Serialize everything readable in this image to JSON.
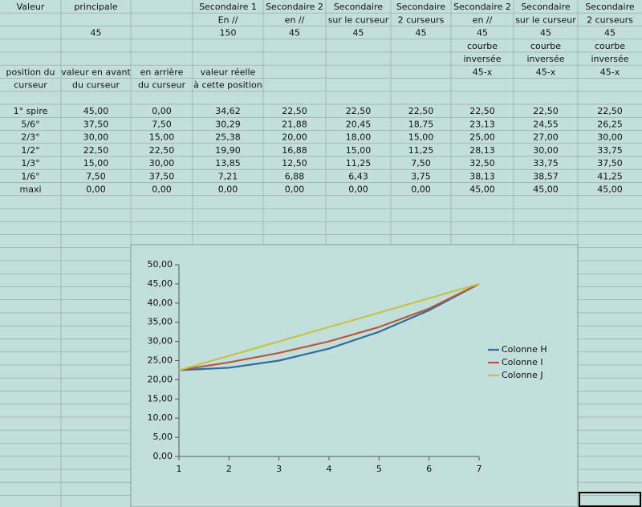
{
  "table": {
    "rows": [
      [
        "Valeur",
        "principale",
        null,
        "Secondaire 1",
        "Secondaire 2",
        "Secondaire",
        "Secondaire",
        "Secondaire 2",
        "Secondaire",
        "Secondaire"
      ],
      [
        null,
        null,
        null,
        "En //",
        "en //",
        "sur le curseur",
        "2 curseurs",
        "en //",
        "sur le curseur",
        "2 curseurs"
      ],
      [
        null,
        "45",
        null,
        "150",
        "45",
        "45",
        "45",
        "45",
        "45",
        "45"
      ],
      [
        null,
        null,
        null,
        null,
        null,
        null,
        null,
        "courbe",
        "courbe",
        "courbe"
      ],
      [
        null,
        null,
        null,
        null,
        null,
        null,
        null,
        "inversée",
        "inversée",
        "inversée"
      ],
      [
        "position du",
        "valeur en avant",
        "en arrière",
        "valeur réelle",
        null,
        null,
        null,
        "45-x",
        "45-x",
        "45-x"
      ],
      [
        "curseur",
        "du curseur",
        "du curseur",
        "à cette position",
        null,
        null,
        null,
        null,
        null,
        null
      ],
      [
        null,
        null,
        null,
        null,
        null,
        null,
        null,
        null,
        null,
        null
      ],
      [
        "1° spire",
        "45,00",
        "0,00",
        "34,62",
        "22,50",
        "22,50",
        "22,50",
        "22,50",
        "22,50",
        "22,50"
      ],
      [
        "5/6°",
        "37,50",
        "7,50",
        "30,29",
        "21,88",
        "20,45",
        "18,75",
        "23,13",
        "24,55",
        "26,25"
      ],
      [
        "2/3°",
        "30,00",
        "15,00",
        "25,38",
        "20,00",
        "18,00",
        "15,00",
        "25,00",
        "27,00",
        "30,00"
      ],
      [
        "1/2°",
        "22,50",
        "22,50",
        "19,90",
        "16,88",
        "15,00",
        "11,25",
        "28,13",
        "30,00",
        "33,75"
      ],
      [
        "1/3°",
        "15,00",
        "30,00",
        "13,85",
        "12,50",
        "11,25",
        "7,50",
        "32,50",
        "33,75",
        "37,50"
      ],
      [
        "1/6°",
        "7,50",
        "37,50",
        "7,21",
        "6,88",
        "6,43",
        "3,75",
        "38,13",
        "38,57",
        "41,25"
      ],
      [
        "maxi",
        "0,00",
        "0,00",
        "0,00",
        "0,00",
        "0,00",
        "0,00",
        "45,00",
        "45,00",
        "45,00"
      ]
    ]
  },
  "chart_data": {
    "type": "line",
    "x": [
      1,
      2,
      3,
      4,
      5,
      6,
      7
    ],
    "xlim": [
      1,
      7
    ],
    "xticks": [
      1,
      2,
      3,
      4,
      5,
      6,
      7
    ],
    "ylim": [
      0,
      50
    ],
    "yticks": [
      {
        "value": 0,
        "label": "0,00"
      },
      {
        "value": 5,
        "label": "5,00"
      },
      {
        "value": 10,
        "label": "10,00"
      },
      {
        "value": 15,
        "label": "15,00"
      },
      {
        "value": 20,
        "label": "20,00"
      },
      {
        "value": 25,
        "label": "25,00"
      },
      {
        "value": 30,
        "label": "30,00"
      },
      {
        "value": 35,
        "label": "35,00"
      },
      {
        "value": 40,
        "label": "40,00"
      },
      {
        "value": 45,
        "label": "45,00"
      },
      {
        "value": 50,
        "label": "50,00"
      }
    ],
    "legend": "right",
    "series": [
      {
        "name": "Colonne H",
        "color": "#2f6c98",
        "values": [
          22.5,
          23.13,
          25,
          28.13,
          32.5,
          38.13,
          45
        ]
      },
      {
        "name": "Colonne I",
        "color": "#b65a3c",
        "values": [
          22.5,
          24.55,
          27,
          30,
          33.75,
          38.57,
          45
        ]
      },
      {
        "name": "Colonne J",
        "color": "#c4c447",
        "values": [
          22.5,
          26.25,
          30,
          33.75,
          37.5,
          41.25,
          45
        ]
      }
    ]
  }
}
